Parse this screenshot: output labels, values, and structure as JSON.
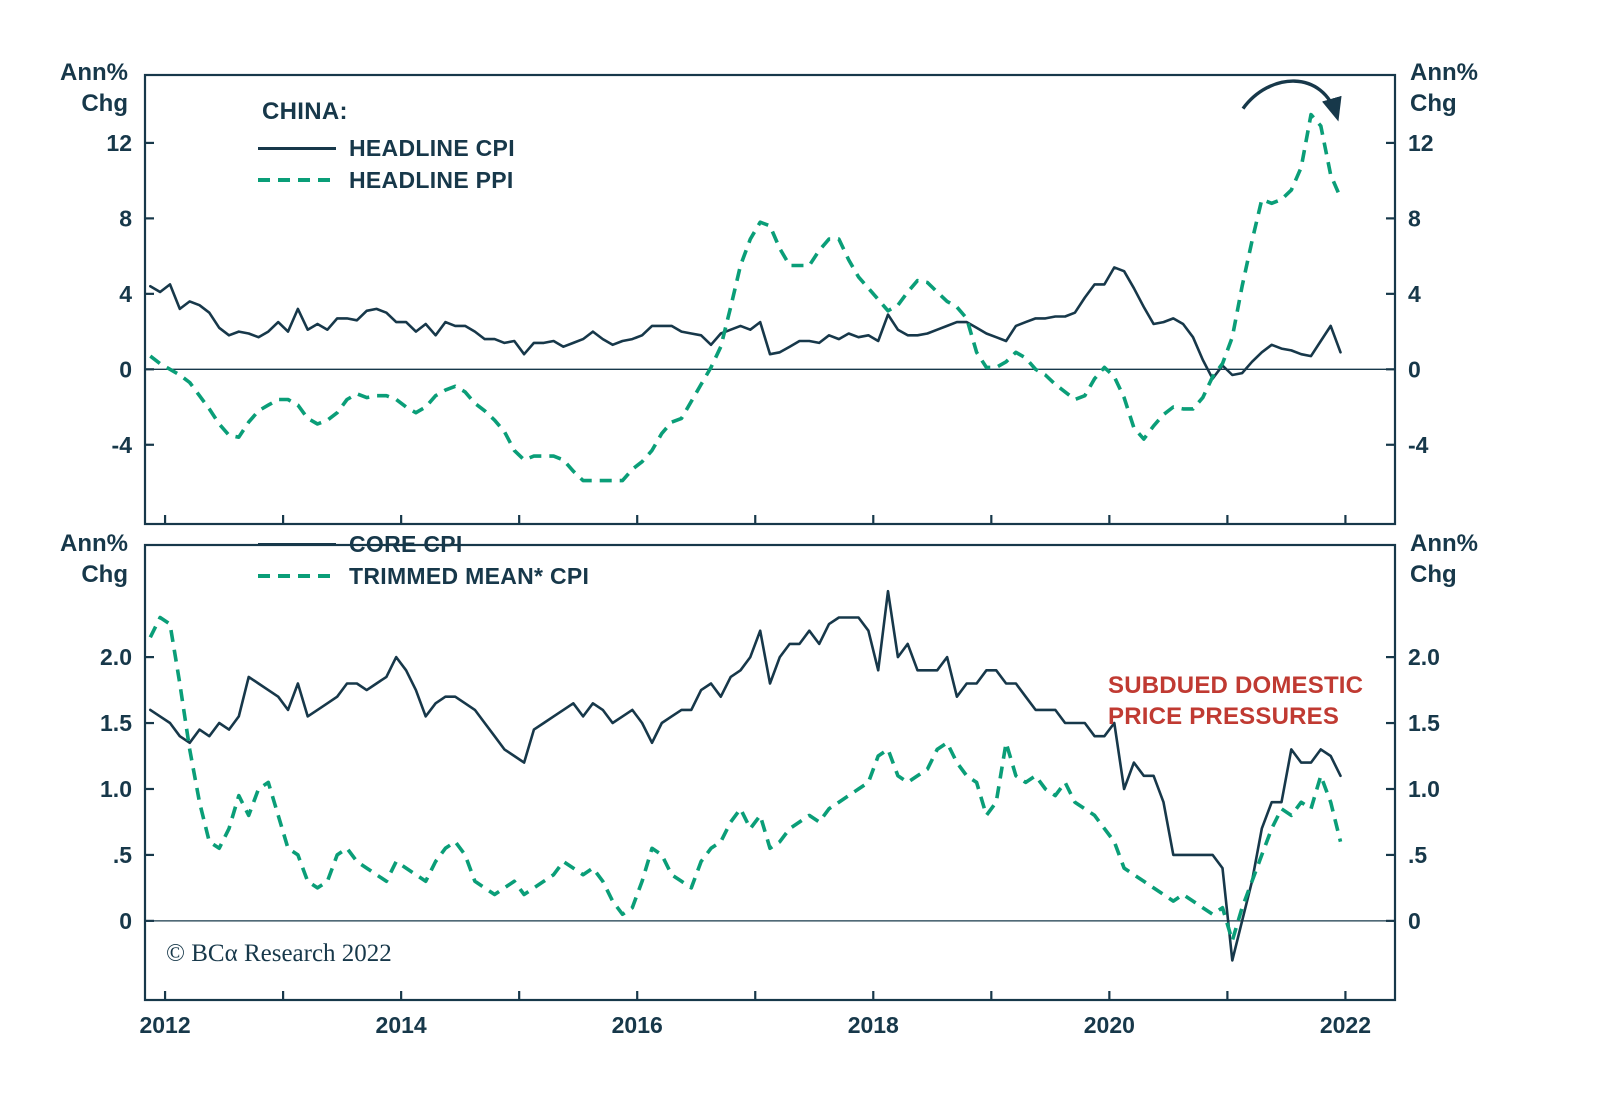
{
  "axis": {
    "unit_line1": "Ann%",
    "unit_line2": "Chg"
  },
  "annotations": {
    "note_line1": "SUBDUED DOMESTIC",
    "note_line2": "PRICE PRESSURES",
    "copyright": "© BCα Research 2022"
  },
  "colors": {
    "ink": "#17384a",
    "green": "#0a9e78",
    "red": "#c03a32",
    "background": "#ffffff"
  },
  "chart_data": [
    {
      "type": "line",
      "panel": "top",
      "title": "CHINA:",
      "legend": [
        {
          "label": "HEADLINE CPI",
          "style": "solid-dark"
        },
        {
          "label": "HEADLINE PPI",
          "style": "dashed-green"
        }
      ],
      "ylabel_left": "Ann% Chg",
      "ylabel_right": "Ann% Chg",
      "grid": false,
      "zero_line": true,
      "legend_position": "top-left",
      "xlim": [
        2011.83,
        2022.42
      ],
      "ylim": [
        -8.2,
        15.6
      ],
      "ytick_values": [
        -4,
        0,
        4,
        8,
        12
      ],
      "ytick_labels": [
        "-4",
        "0",
        "4",
        "8",
        "12"
      ],
      "xtick_values": [
        2012,
        2013,
        2014,
        2015,
        2016,
        2017,
        2018,
        2019,
        2020,
        2021,
        2022
      ],
      "xtick_label_values": [
        2012,
        2014,
        2016,
        2018,
        2020,
        2022
      ],
      "series": [
        {
          "name": "HEADLINE CPI",
          "style": "solid-dark",
          "start": 2011.875,
          "step": 0.0833333,
          "values": [
            4.4,
            4.1,
            4.5,
            3.2,
            3.6,
            3.4,
            3.0,
            2.2,
            1.8,
            2.0,
            1.9,
            1.7,
            2.0,
            2.5,
            2.0,
            3.2,
            2.1,
            2.4,
            2.1,
            2.7,
            2.7,
            2.6,
            3.1,
            3.2,
            3.0,
            2.5,
            2.5,
            2.0,
            2.4,
            1.8,
            2.5,
            2.3,
            2.3,
            2.0,
            1.6,
            1.6,
            1.4,
            1.5,
            0.8,
            1.4,
            1.4,
            1.5,
            1.2,
            1.4,
            1.6,
            2.0,
            1.6,
            1.3,
            1.5,
            1.6,
            1.8,
            2.3,
            2.3,
            2.3,
            2.0,
            1.9,
            1.8,
            1.3,
            1.9,
            2.1,
            2.3,
            2.1,
            2.5,
            0.8,
            0.9,
            1.2,
            1.5,
            1.5,
            1.4,
            1.8,
            1.6,
            1.9,
            1.7,
            1.8,
            1.5,
            2.9,
            2.1,
            1.8,
            1.8,
            1.9,
            2.1,
            2.3,
            2.5,
            2.5,
            2.2,
            1.9,
            1.7,
            1.5,
            2.3,
            2.5,
            2.7,
            2.7,
            2.8,
            2.8,
            3.0,
            3.8,
            4.5,
            4.5,
            5.4,
            5.2,
            4.3,
            3.3,
            2.4,
            2.5,
            2.7,
            2.4,
            1.7,
            0.5,
            -0.5,
            0.2,
            -0.3,
            -0.2,
            0.4,
            0.9,
            1.3,
            1.1,
            1.0,
            0.8,
            0.7,
            1.5,
            2.3,
            0.9
          ]
        },
        {
          "name": "HEADLINE PPI",
          "style": "dashed-green",
          "start": 2011.875,
          "step": 0.0833333,
          "values": [
            0.7,
            0.3,
            0.0,
            -0.3,
            -0.7,
            -1.4,
            -2.1,
            -2.9,
            -3.5,
            -3.6,
            -2.8,
            -2.2,
            -1.9,
            -1.6,
            -1.6,
            -1.9,
            -2.6,
            -2.9,
            -2.7,
            -2.3,
            -1.6,
            -1.3,
            -1.5,
            -1.4,
            -1.4,
            -1.6,
            -2.0,
            -2.3,
            -2.0,
            -1.4,
            -1.1,
            -0.9,
            -1.2,
            -1.8,
            -2.2,
            -2.7,
            -3.3,
            -4.3,
            -4.8,
            -4.6,
            -4.6,
            -4.6,
            -4.8,
            -5.4,
            -5.9,
            -5.9,
            -5.9,
            -5.9,
            -5.9,
            -5.3,
            -4.9,
            -4.3,
            -3.4,
            -2.8,
            -2.6,
            -1.7,
            -0.8,
            0.1,
            1.2,
            3.3,
            5.5,
            6.9,
            7.8,
            7.6,
            6.4,
            5.5,
            5.5,
            5.5,
            6.3,
            6.9,
            6.9,
            5.8,
            4.9,
            4.3,
            3.7,
            3.1,
            3.4,
            4.1,
            4.7,
            4.6,
            4.1,
            3.6,
            3.3,
            2.7,
            0.9,
            0.1,
            0.1,
            0.4,
            0.9,
            0.6,
            0.0,
            -0.3,
            -0.8,
            -1.2,
            -1.6,
            -1.4,
            -0.5,
            0.1,
            -0.4,
            -1.5,
            -3.1,
            -3.7,
            -3.0,
            -2.4,
            -2.0,
            -2.1,
            -2.1,
            -1.5,
            -0.4,
            0.3,
            1.7,
            4.4,
            6.8,
            9.0,
            8.8,
            9.0,
            9.5,
            10.7,
            13.5,
            12.9,
            10.3,
            9.1
          ]
        }
      ]
    },
    {
      "type": "line",
      "panel": "bottom",
      "legend": [
        {
          "label": "CORE CPI",
          "style": "solid-dark"
        },
        {
          "label": "TRIMMED MEAN* CPI",
          "style": "dashed-green"
        }
      ],
      "ylabel_left": "Ann% Chg",
      "ylabel_right": "Ann% Chg",
      "grid": false,
      "zero_line": true,
      "legend_position": "top-left",
      "xlim": [
        2011.83,
        2022.42
      ],
      "ylim": [
        -0.6,
        2.85
      ],
      "ytick_values": [
        0,
        0.5,
        1.0,
        1.5,
        2.0
      ],
      "ytick_labels": [
        "0",
        ".5",
        "1.0",
        "1.5",
        "2.0"
      ],
      "xtick_values": [
        2012,
        2013,
        2014,
        2015,
        2016,
        2017,
        2018,
        2019,
        2020,
        2021,
        2022
      ],
      "xtick_label_values": [
        2012,
        2014,
        2016,
        2018,
        2020,
        2022
      ],
      "series": [
        {
          "name": "CORE CPI",
          "style": "solid-dark",
          "start": 2011.875,
          "step": 0.0833333,
          "values": [
            1.6,
            1.55,
            1.5,
            1.4,
            1.35,
            1.45,
            1.4,
            1.5,
            1.45,
            1.55,
            1.85,
            1.8,
            1.75,
            1.7,
            1.6,
            1.8,
            1.55,
            1.6,
            1.65,
            1.7,
            1.8,
            1.8,
            1.75,
            1.8,
            1.85,
            2.0,
            1.9,
            1.75,
            1.55,
            1.65,
            1.7,
            1.7,
            1.65,
            1.6,
            1.5,
            1.4,
            1.3,
            1.25,
            1.2,
            1.45,
            1.5,
            1.55,
            1.6,
            1.65,
            1.55,
            1.65,
            1.6,
            1.5,
            1.55,
            1.6,
            1.5,
            1.35,
            1.5,
            1.55,
            1.6,
            1.6,
            1.75,
            1.8,
            1.7,
            1.85,
            1.9,
            2.0,
            2.2,
            1.8,
            2.0,
            2.1,
            2.1,
            2.2,
            2.1,
            2.25,
            2.3,
            2.3,
            2.3,
            2.2,
            1.9,
            2.5,
            2.0,
            2.1,
            1.9,
            1.9,
            1.9,
            2.0,
            1.7,
            1.8,
            1.8,
            1.9,
            1.9,
            1.8,
            1.8,
            1.7,
            1.6,
            1.6,
            1.6,
            1.5,
            1.5,
            1.5,
            1.4,
            1.4,
            1.5,
            1.0,
            1.2,
            1.1,
            1.1,
            0.9,
            0.5,
            0.5,
            0.5,
            0.5,
            0.5,
            0.4,
            -0.3,
            0.0,
            0.3,
            0.7,
            0.9,
            0.9,
            1.3,
            1.2,
            1.2,
            1.3,
            1.25,
            1.1
          ]
        },
        {
          "name": "TRIMMED MEAN CPI",
          "style": "dashed-green",
          "start": 2011.875,
          "step": 0.0833333,
          "values": [
            2.15,
            2.3,
            2.25,
            1.8,
            1.3,
            0.9,
            0.6,
            0.55,
            0.7,
            0.95,
            0.8,
            1.0,
            1.05,
            0.8,
            0.55,
            0.5,
            0.3,
            0.25,
            0.3,
            0.5,
            0.55,
            0.45,
            0.4,
            0.35,
            0.3,
            0.45,
            0.4,
            0.35,
            0.3,
            0.45,
            0.55,
            0.6,
            0.5,
            0.3,
            0.25,
            0.2,
            0.25,
            0.3,
            0.2,
            0.25,
            0.3,
            0.35,
            0.45,
            0.4,
            0.35,
            0.4,
            0.3,
            0.15,
            0.05,
            0.1,
            0.3,
            0.55,
            0.5,
            0.35,
            0.3,
            0.25,
            0.45,
            0.55,
            0.6,
            0.75,
            0.85,
            0.7,
            0.8,
            0.55,
            0.6,
            0.7,
            0.75,
            0.8,
            0.75,
            0.85,
            0.9,
            0.95,
            1.0,
            1.05,
            1.25,
            1.3,
            1.1,
            1.05,
            1.1,
            1.15,
            1.3,
            1.35,
            1.2,
            1.1,
            1.05,
            0.8,
            0.9,
            1.35,
            1.1,
            1.05,
            1.1,
            1.0,
            0.95,
            1.05,
            0.9,
            0.85,
            0.8,
            0.7,
            0.6,
            0.4,
            0.35,
            0.3,
            0.25,
            0.2,
            0.15,
            0.2,
            0.15,
            0.1,
            0.05,
            0.1,
            -0.15,
            0.1,
            0.3,
            0.5,
            0.7,
            0.85,
            0.8,
            0.9,
            0.85,
            1.1,
            0.9,
            0.6
          ]
        }
      ]
    }
  ]
}
